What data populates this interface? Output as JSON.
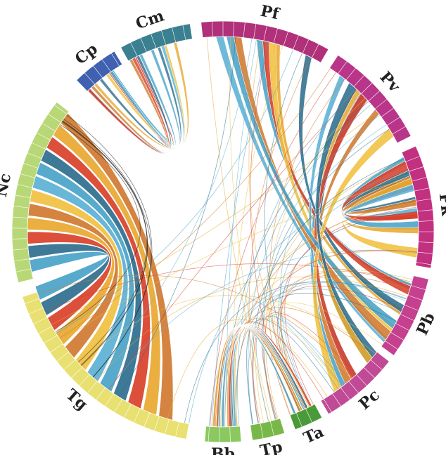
{
  "diagram": {
    "segments": [
      {
        "id": "Pf",
        "label": "Pf",
        "color": "#b0307a",
        "start": 354,
        "end": 30
      },
      {
        "id": "Pv",
        "label": "Pv",
        "color": "#b8358a",
        "start": 33,
        "end": 63
      },
      {
        "id": "Pk",
        "label": "Pk",
        "color": "#c23080",
        "start": 66,
        "end": 100
      },
      {
        "id": "Pb",
        "label": "Pb",
        "color": "#c5408f",
        "start": 103,
        "end": 126
      },
      {
        "id": "Pc",
        "label": "Pc",
        "color": "#c04a95",
        "start": 128,
        "end": 150
      },
      {
        "id": "Ta",
        "label": "Ta",
        "color": "#4a9a3a",
        "start": 152,
        "end": 160
      },
      {
        "id": "Tp",
        "label": "Tp",
        "color": "#78b848",
        "start": 163,
        "end": 172
      },
      {
        "id": "Bb",
        "label": "Bb",
        "color": "#8cc860",
        "start": 175,
        "end": 185
      },
      {
        "id": "Tg",
        "label": "Tg",
        "color": "#e8e070",
        "start": 190,
        "end": 252
      },
      {
        "id": "Nc",
        "label": "Nc",
        "color": "#b8d878",
        "start": 256,
        "end": 308
      },
      {
        "id": "Cp",
        "label": "Cp",
        "color": "#4060b0",
        "start": 316,
        "end": 329
      },
      {
        "id": "Cm",
        "label": "Cm",
        "color": "#3a8090",
        "start": 331,
        "end": 351
      }
    ],
    "ribbon_colors": [
      "#4aa3c8",
      "#2e6e8e",
      "#d8402a",
      "#e8a830",
      "#d07a30",
      "#f0c040",
      "#5bb0d5"
    ]
  }
}
